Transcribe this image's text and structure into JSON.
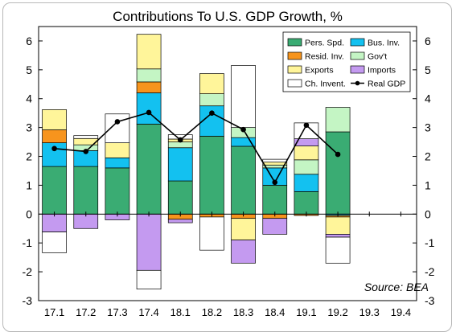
{
  "colors": {
    "pers_spd": "#3aac73",
    "bus_inv": "#13c1f0",
    "resid_inv": "#f7941d",
    "govt": "#c4f5c4",
    "exports": "#fff59a",
    "imports": "#c49af0",
    "ch_invent": "#ffffff",
    "real_gdp": "#000000"
  },
  "chart_data": {
    "type": "bar",
    "stacked": true,
    "title": "Contributions To U.S. GDP Growth, %",
    "source": "Source: BEA",
    "categories": [
      "17.1",
      "17.2",
      "17.3",
      "17.4",
      "18.1",
      "18.2",
      "18.3",
      "18.4",
      "19.1",
      "19.2",
      "19.3",
      "19.4"
    ],
    "ylim": [
      -3,
      6.5
    ],
    "yticks": [
      "-3",
      "-2",
      "-1",
      "0",
      "1",
      "2",
      "3",
      "4",
      "5",
      "6"
    ],
    "grid": false,
    "legend_position": "top-right",
    "series": [
      {
        "key": "pers_spd",
        "name": "Pers. Spd.",
        "type": "bar",
        "values": [
          1.65,
          1.65,
          1.6,
          3.12,
          1.15,
          2.7,
          2.35,
          1.0,
          0.78,
          2.85,
          null,
          null
        ]
      },
      {
        "key": "bus_inv",
        "name": "Bus. Inv.",
        "type": "bar",
        "values": [
          0.82,
          0.55,
          0.35,
          1.08,
          1.15,
          1.05,
          0.3,
          0.6,
          0.6,
          -0.05,
          null,
          null
        ]
      },
      {
        "key": "resid_inv",
        "name": "Resid. Inv.",
        "type": "bar",
        "values": [
          0.45,
          0.0,
          0.0,
          0.38,
          -0.18,
          -0.1,
          -0.15,
          -0.15,
          -0.05,
          -0.05,
          null,
          null
        ]
      },
      {
        "key": "govt",
        "name": "Gov't",
        "type": "bar",
        "values": [
          0.0,
          0.2,
          0.0,
          0.45,
          0.2,
          0.42,
          0.35,
          0.1,
          0.5,
          0.85,
          null,
          null
        ]
      },
      {
        "key": "exports",
        "name": "Exports",
        "type": "bar",
        "values": [
          0.7,
          0.22,
          0.52,
          1.2,
          0.1,
          0.7,
          -0.75,
          0.1,
          0.48,
          -0.6,
          null,
          null
        ]
      },
      {
        "key": "imports",
        "name": "Imports",
        "type": "bar",
        "values": [
          -0.62,
          -0.5,
          -0.2,
          -1.95,
          -0.12,
          0.0,
          -0.8,
          -0.55,
          0.25,
          -0.1,
          null,
          null
        ]
      },
      {
        "key": "ch_invent",
        "name": "Ch. Invent.",
        "type": "bar",
        "values": [
          -0.72,
          0.1,
          1.0,
          -0.65,
          0.15,
          -1.15,
          2.15,
          0.1,
          0.55,
          -0.9,
          null,
          null
        ]
      },
      {
        "key": "real_gdp",
        "name": "Real GDP",
        "type": "line",
        "values": [
          2.27,
          2.17,
          3.2,
          3.52,
          2.57,
          3.5,
          2.93,
          1.1,
          3.08,
          2.07,
          null,
          null
        ]
      }
    ]
  }
}
